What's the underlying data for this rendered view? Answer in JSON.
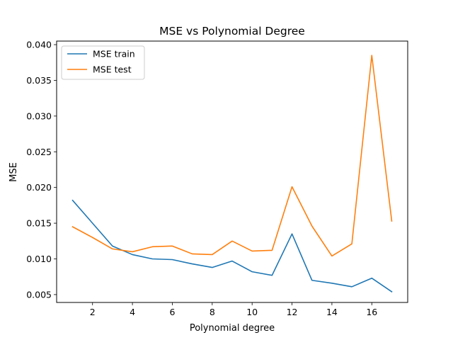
{
  "chart_data": {
    "type": "line",
    "title": "MSE vs Polynomial Degree",
    "xlabel": "Polynomial degree",
    "ylabel": "MSE",
    "x": [
      1,
      2,
      3,
      4,
      5,
      6,
      7,
      8,
      9,
      10,
      11,
      12,
      13,
      14,
      15,
      16,
      17
    ],
    "xlim": [
      0.2,
      17.8
    ],
    "ylim": [
      0.0039,
      0.0405
    ],
    "xticks": [
      2,
      4,
      6,
      8,
      10,
      12,
      14,
      16
    ],
    "xtick_labels": [
      "2",
      "4",
      "6",
      "8",
      "10",
      "12",
      "14",
      "16"
    ],
    "yticks": [
      0.005,
      0.01,
      0.015,
      0.02,
      0.025,
      0.03,
      0.035,
      0.04
    ],
    "ytick_labels": [
      "0.005",
      "0.010",
      "0.015",
      "0.020",
      "0.025",
      "0.030",
      "0.035",
      "0.040"
    ],
    "grid": false,
    "legend_position": "top-left",
    "series": [
      {
        "name": "MSE train",
        "color": "#1f77b4",
        "values": [
          0.0182,
          0.015,
          0.0118,
          0.0106,
          0.01,
          0.0099,
          0.0093,
          0.0088,
          0.0097,
          0.0082,
          0.0077,
          0.0135,
          0.007,
          0.0066,
          0.0061,
          0.0073,
          0.0054
        ]
      },
      {
        "name": "MSE test",
        "color": "#ff7f0e",
        "values": [
          0.0145,
          0.013,
          0.0114,
          0.011,
          0.0117,
          0.0118,
          0.0107,
          0.0106,
          0.0125,
          0.0111,
          0.0112,
          0.0201,
          0.0146,
          0.0104,
          0.0121,
          0.0385,
          0.0153
        ]
      }
    ]
  }
}
